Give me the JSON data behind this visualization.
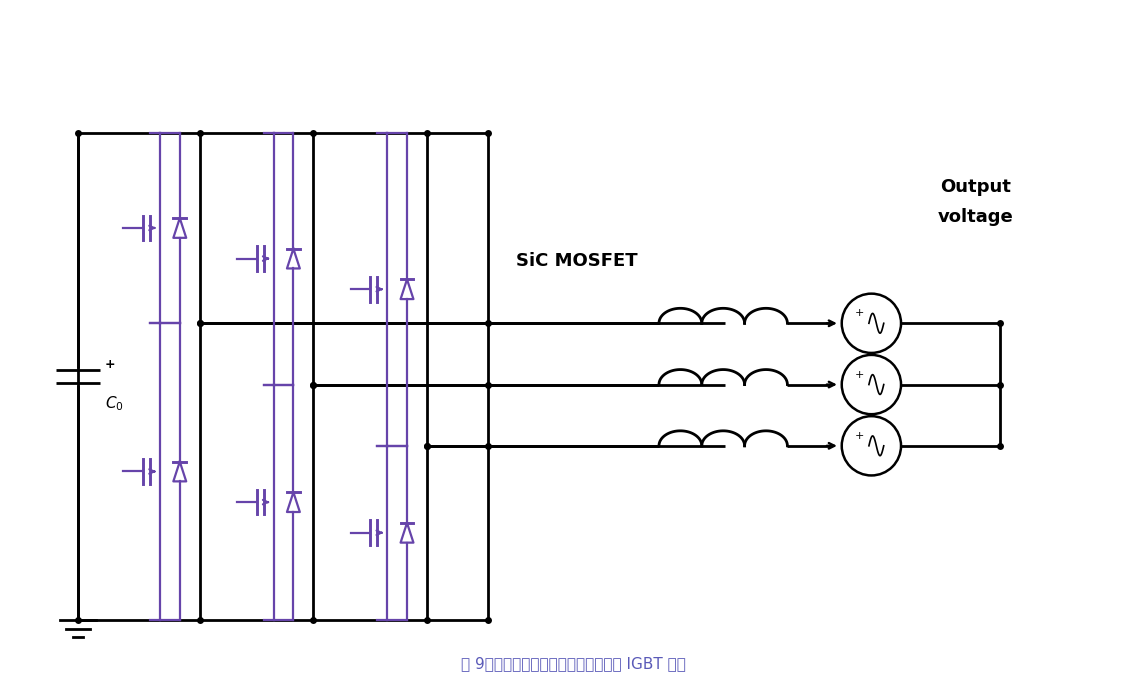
{
  "title": "图 9：在逆变器级中用碳化硅开关取代 IGBT 开关",
  "title_color": "#5a5ab8",
  "bg_color": "#ffffff",
  "line_color": "#000000",
  "purple_color": "#6644aa",
  "label_sic": "SiC MOSFET",
  "label_output1": "Output",
  "label_output2": "voltage",
  "figsize": [
    11.47,
    6.95
  ],
  "dpi": 100
}
